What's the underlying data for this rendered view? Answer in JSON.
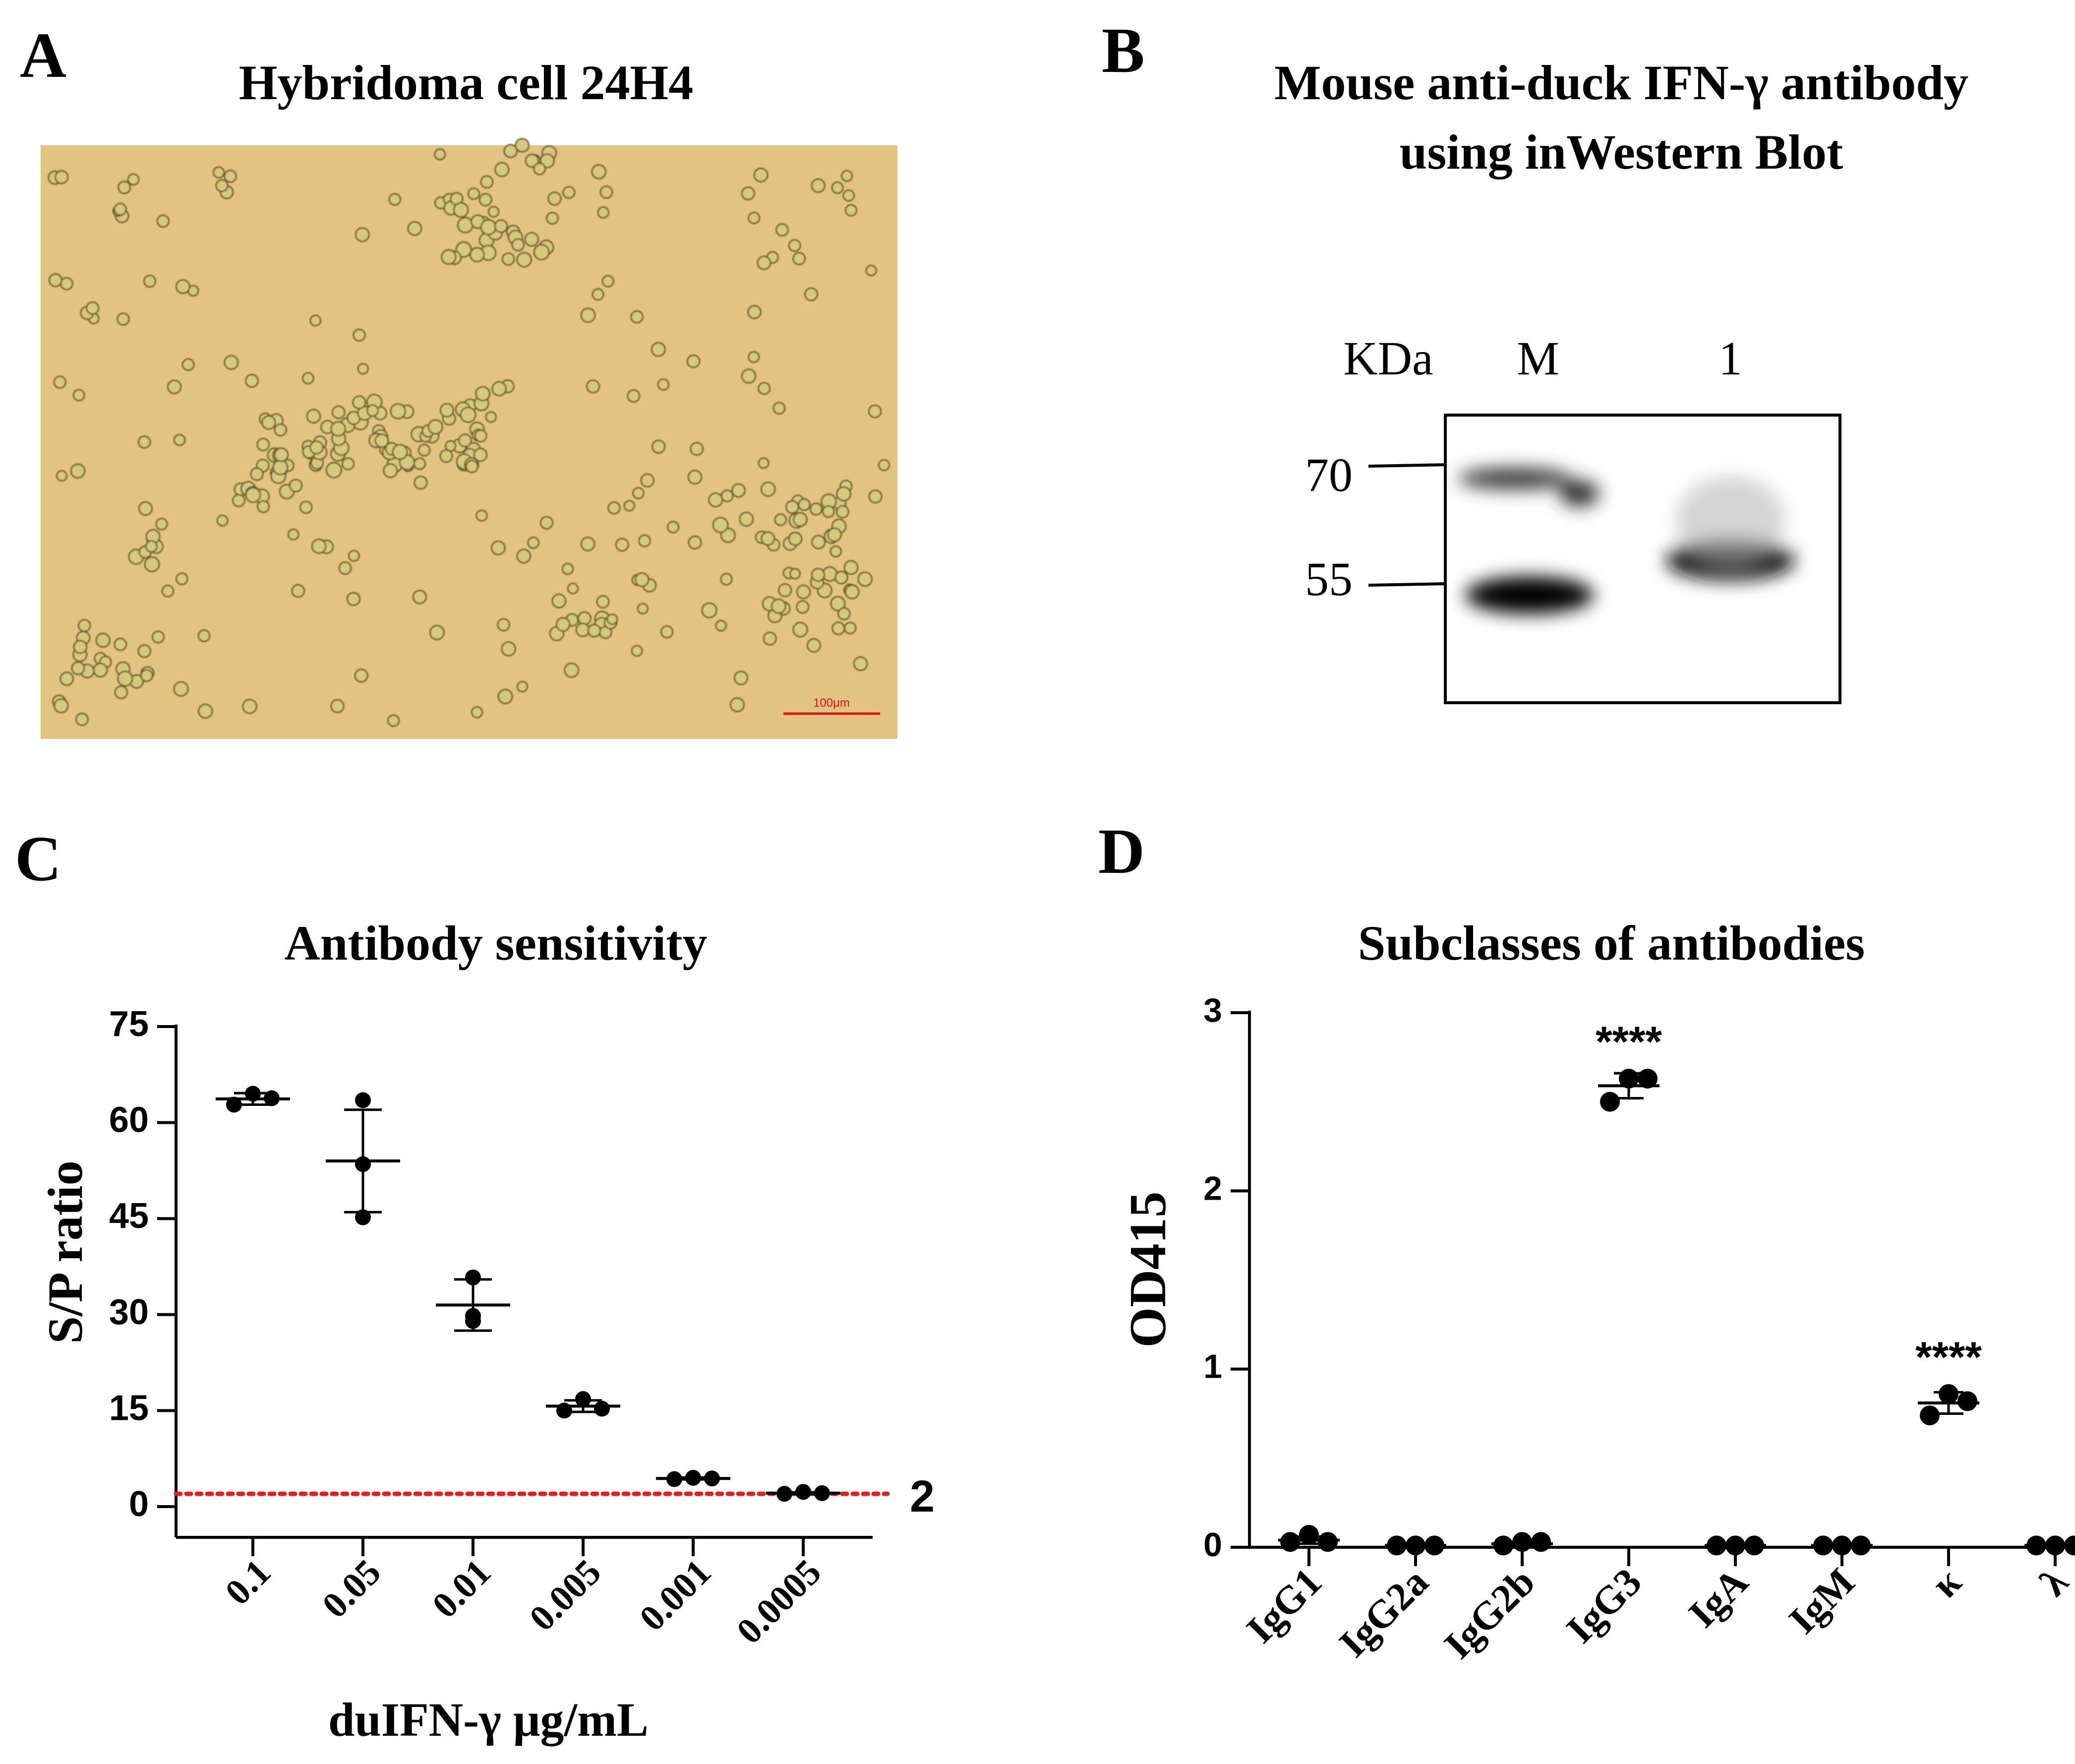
{
  "colors": {
    "micrograph_bg": "#e3c381",
    "micrograph_cell": "#d6c97e",
    "scale_bar": "#d4141b",
    "threshold_line": "#e02020",
    "ink": "#000000"
  },
  "panel_a": {
    "letter": "A",
    "title": "Hybridoma cell 24H4",
    "scale_label": "100μm"
  },
  "panel_b": {
    "letter": "B",
    "title_line1": "Mouse anti-duck IFN-γ antibody",
    "title_line2": "using inWestern Blot",
    "unit_label": "KDa",
    "lanes": [
      "M",
      "1"
    ],
    "markers": [
      "70",
      "55"
    ]
  },
  "chart_data": [
    {
      "panel": "C",
      "type": "scatter",
      "title": "Antibody sensitivity",
      "xlabel": "duIFN-γ μg/mL",
      "ylabel": "S/P ratio",
      "ylim": [
        0,
        75
      ],
      "yticks": [
        "0",
        "15",
        "30",
        "45",
        "60",
        "75"
      ],
      "categories": [
        "0.1",
        "0.05",
        "0.01",
        "0.005",
        "0.001",
        "0.0005"
      ],
      "points": [
        [
          62.8,
          64.5,
          63.8
        ],
        [
          63.5,
          53.5,
          45.2
        ],
        [
          29.0,
          35.8,
          29.8
        ],
        [
          15.0,
          16.8,
          15.3
        ],
        [
          4.3,
          4.5,
          4.4
        ],
        [
          2.0,
          2.3,
          2.1
        ]
      ],
      "mean": [
        63.7,
        54.0,
        31.5,
        15.7,
        4.4,
        2.1
      ],
      "sd": [
        0.9,
        8.0,
        4.0,
        0.9,
        0.15,
        0.15
      ],
      "threshold": {
        "value": 2,
        "label": "2"
      },
      "grid": false
    },
    {
      "panel": "D",
      "type": "scatter",
      "title": "Subclasses of antibodies",
      "xlabel": "",
      "ylabel": "OD415",
      "ylim": [
        0,
        3
      ],
      "yticks": [
        "0",
        "1",
        "2",
        "3"
      ],
      "categories": [
        "IgG1",
        "IgG2a",
        "IgG2b",
        "IgG3",
        "IgA",
        "IgM",
        "κ",
        "λ"
      ],
      "points": [
        [
          0.03,
          0.07,
          0.03
        ],
        [
          0.01,
          0.01,
          0.01
        ],
        [
          0.01,
          0.03,
          0.03
        ],
        [
          2.5,
          2.63,
          2.63
        ],
        [
          0.01,
          0.01,
          0.01
        ],
        [
          0.01,
          0.01,
          0.01
        ],
        [
          0.74,
          0.86,
          0.82
        ],
        [
          0.01,
          0.01,
          0.01
        ]
      ],
      "mean": [
        0.04,
        0.01,
        0.02,
        2.59,
        0.01,
        0.01,
        0.81,
        0.01
      ],
      "sd": [
        0.02,
        0.0,
        0.01,
        0.07,
        0.0,
        0.0,
        0.06,
        0.0
      ],
      "annotations": [
        {
          "category": "IgG3",
          "text": "****"
        },
        {
          "category": "κ",
          "text": "****"
        }
      ],
      "grid": false
    }
  ],
  "panel_c": {
    "letter": "C"
  },
  "panel_d": {
    "letter": "D"
  }
}
